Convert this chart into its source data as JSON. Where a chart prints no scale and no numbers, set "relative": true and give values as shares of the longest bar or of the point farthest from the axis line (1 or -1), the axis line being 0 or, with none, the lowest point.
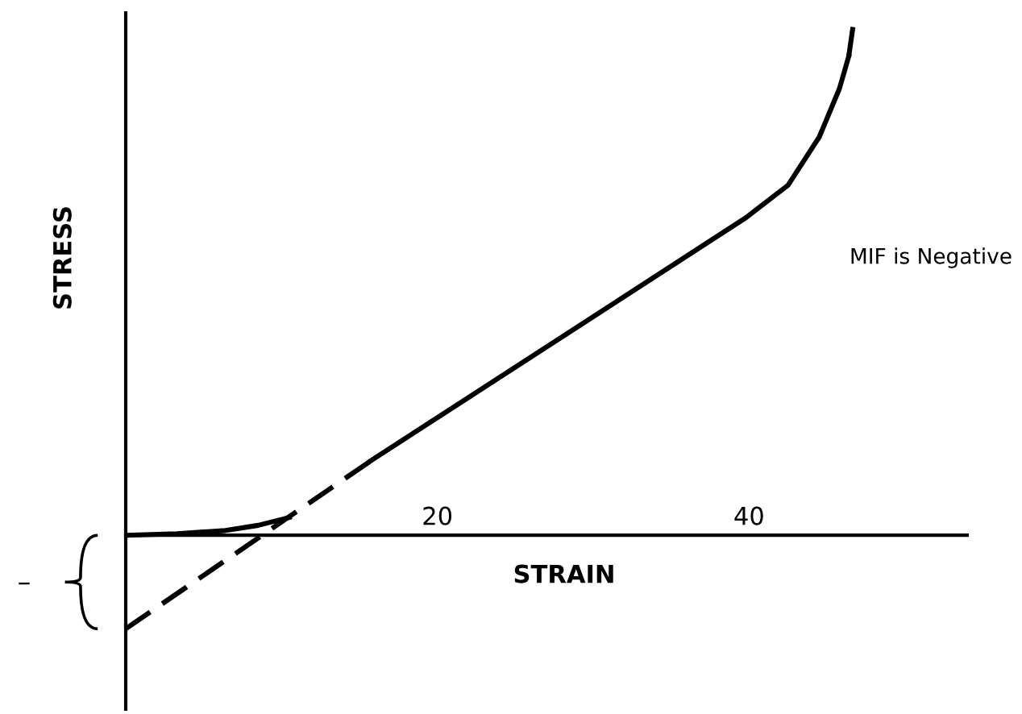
{
  "chart_data": {
    "type": "line",
    "relative": true,
    "xlabel": "STRAIN",
    "ylabel": "STRESS",
    "xlim": [
      0,
      54
    ],
    "xticks": [
      20,
      40
    ],
    "grid": false,
    "legend": false,
    "marker": "none",
    "series": [
      {
        "color": "#000000",
        "line_style": "solid",
        "x": [
          0,
          3.3,
          6.4,
          8.5,
          10.5
        ],
        "values": [
          0,
          0.003,
          0.009,
          0.019,
          0.034
        ]
      },
      {
        "color": "#000000",
        "line_style": "dashed",
        "x": [
          0,
          15.7
        ],
        "values": [
          -0.179,
          0.142
        ]
      },
      {
        "color": "#000000",
        "line_style": "solid",
        "x": [
          15.7,
          39.8,
          42.5,
          44.5,
          45.8,
          46.4
        ],
        "values": [
          0.142,
          0.608,
          0.67,
          0.762,
          0.855,
          0.917
        ]
      },
      {
        "color": "#000000",
        "line_style": "dashed",
        "x": [
          46.4,
          46.8
        ],
        "values": [
          0.917,
          1.0
        ]
      }
    ],
    "annotations": [
      "MIF is Negative",
      "–"
    ]
  }
}
